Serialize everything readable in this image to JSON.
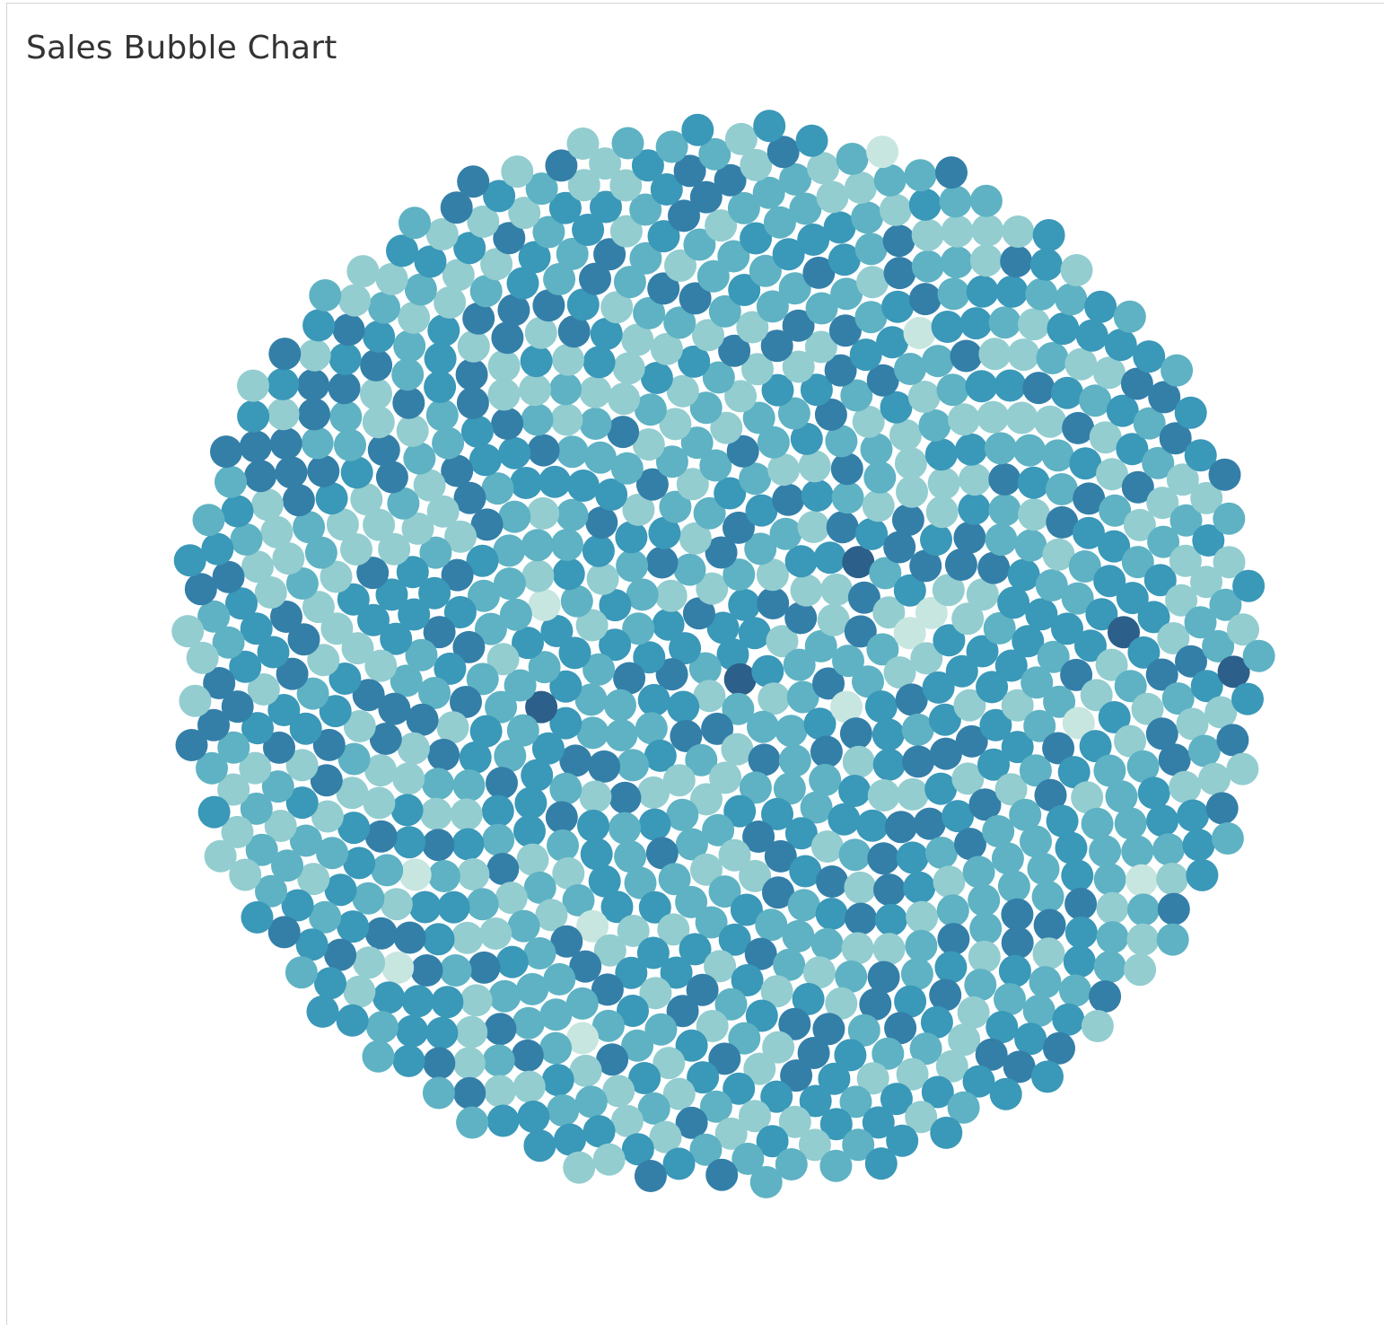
{
  "chart_data": {
    "type": "bubble",
    "title": "Sales Bubble Chart",
    "layout": "packed",
    "mark_count": 1000,
    "bubble_size": "uniform",
    "color_encoding": "sequential",
    "palette": [
      "#c7e6df",
      "#93cdd0",
      "#5eb2c3",
      "#3a98b8",
      "#347fa8",
      "#2c5f8a"
    ],
    "legend": "none",
    "grid": false
  }
}
